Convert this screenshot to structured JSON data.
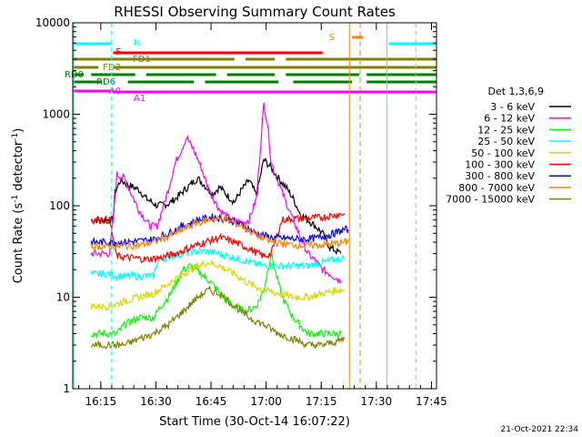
{
  "chart_data": {
    "type": "line",
    "title": "RHESSI Observing Summary Count Rates",
    "xlabel": "Start Time (30-Oct-14 16:07:22)",
    "ylabel": "Count Rate (s⁻¹ detector⁻¹)",
    "ylabel_parts": {
      "base": "Count Rate (s",
      "exp1": "-1",
      "mid": " detector",
      "exp2": "-1",
      "end": ")"
    },
    "yscale": "log",
    "x_unit": "minutes after 16:07:22",
    "xlim": [
      0,
      99
    ],
    "ylim": [
      1,
      10000
    ],
    "xticks": [
      {
        "v": 7.63,
        "label": "16:15"
      },
      {
        "v": 22.63,
        "label": "16:30"
      },
      {
        "v": 37.63,
        "label": "16:45"
      },
      {
        "v": 52.63,
        "label": "17:00"
      },
      {
        "v": 67.63,
        "label": "17:15"
      },
      {
        "v": 82.63,
        "label": "17:30"
      },
      {
        "v": 97.63,
        "label": "17:45"
      }
    ],
    "yticks": [
      {
        "v": 1,
        "label": "1"
      },
      {
        "v": 10,
        "label": "10"
      },
      {
        "v": 100,
        "label": "100"
      },
      {
        "v": 1000,
        "label": "1000"
      },
      {
        "v": 10000,
        "label": "10000"
      }
    ],
    "legend": {
      "title": "Det 1,3,6,9",
      "position": "right",
      "entries": [
        {
          "label": "3 - 6 keV",
          "color": "#000000"
        },
        {
          "label": "6 - 12 keV",
          "color": "#ff00ff"
        },
        {
          "label": "12 - 25 keV",
          "color": "#00ff00"
        },
        {
          "label": "25 - 50 keV",
          "color": "#00ffff"
        },
        {
          "label": "50 - 100 keV",
          "color": "#d8d800"
        },
        {
          "label": "100 - 300 keV",
          "color": "#ff0000"
        },
        {
          "label": "300 - 800 keV",
          "color": "#0000ff"
        },
        {
          "label": "800 - 7000 keV",
          "color": "#ff8000"
        },
        {
          "label": "7000 - 15000 keV",
          "color": "#808000"
        }
      ]
    },
    "series": [
      {
        "name": "3 - 6 keV",
        "color": "#000000",
        "points": [
          [
            5,
            70
          ],
          [
            11,
            70
          ],
          [
            11.5,
            140
          ],
          [
            13,
            190
          ],
          [
            15,
            170
          ],
          [
            18,
            150
          ],
          [
            20,
            120
          ],
          [
            23,
            100
          ],
          [
            26,
            105
          ],
          [
            28,
            120
          ],
          [
            32,
            170
          ],
          [
            34,
            200
          ],
          [
            36,
            165
          ],
          [
            38,
            135
          ],
          [
            40,
            160
          ],
          [
            42,
            130
          ],
          [
            44,
            110
          ],
          [
            46,
            150
          ],
          [
            48,
            190
          ],
          [
            50,
            130
          ],
          [
            52,
            320
          ],
          [
            54,
            260
          ],
          [
            56,
            200
          ],
          [
            58,
            160
          ],
          [
            60,
            120
          ],
          [
            62,
            80
          ],
          [
            64,
            70
          ],
          [
            66,
            60
          ],
          [
            68,
            50
          ],
          [
            70,
            35
          ],
          [
            73,
            30
          ]
        ]
      },
      {
        "name": "6 - 12 keV",
        "color": "#ff00ff",
        "points": [
          [
            5,
            30
          ],
          [
            10,
            30
          ],
          [
            11,
            70
          ],
          [
            12,
            220
          ],
          [
            14,
            200
          ],
          [
            18,
            90
          ],
          [
            21,
            60
          ],
          [
            23,
            60
          ],
          [
            26,
            150
          ],
          [
            28,
            300
          ],
          [
            30,
            450
          ],
          [
            31,
            560
          ],
          [
            33,
            400
          ],
          [
            35,
            260
          ],
          [
            37,
            150
          ],
          [
            40,
            90
          ],
          [
            43,
            70
          ],
          [
            46,
            65
          ],
          [
            48,
            70
          ],
          [
            50,
            120
          ],
          [
            52,
            1300
          ],
          [
            53,
            800
          ],
          [
            54,
            300
          ],
          [
            56,
            180
          ],
          [
            58,
            110
          ],
          [
            60,
            70
          ],
          [
            62,
            45
          ],
          [
            64,
            30
          ],
          [
            66,
            25
          ],
          [
            68,
            20
          ],
          [
            70,
            18
          ],
          [
            73,
            15
          ]
        ]
      },
      {
        "name": "12 - 25 keV",
        "color": "#00ff00",
        "points": [
          [
            5,
            4
          ],
          [
            10,
            4
          ],
          [
            12,
            4
          ],
          [
            14,
            5
          ],
          [
            18,
            6
          ],
          [
            22,
            6
          ],
          [
            24,
            8
          ],
          [
            26,
            10
          ],
          [
            28,
            14
          ],
          [
            30,
            20
          ],
          [
            32,
            22
          ],
          [
            35,
            18
          ],
          [
            38,
            14
          ],
          [
            41,
            10
          ],
          [
            44,
            8
          ],
          [
            47,
            7
          ],
          [
            50,
            8
          ],
          [
            52,
            12
          ],
          [
            54,
            30
          ],
          [
            55,
            20
          ],
          [
            57,
            10
          ],
          [
            60,
            6
          ],
          [
            64,
            4
          ],
          [
            68,
            4
          ],
          [
            71,
            4
          ],
          [
            73,
            4
          ]
        ]
      },
      {
        "name": "25 - 50 keV",
        "color": "#00ffff",
        "points": [
          [
            5,
            18
          ],
          [
            10,
            18
          ],
          [
            12,
            17
          ],
          [
            16,
            17
          ],
          [
            20,
            17
          ],
          [
            22,
            17
          ],
          [
            23,
            24
          ],
          [
            24,
            26
          ],
          [
            28,
            29
          ],
          [
            32,
            31
          ],
          [
            35,
            32
          ],
          [
            38,
            31
          ],
          [
            41,
            29
          ],
          [
            44,
            27
          ],
          [
            47,
            25
          ],
          [
            50,
            23
          ],
          [
            52,
            22
          ],
          [
            54,
            22
          ],
          [
            56,
            22
          ],
          [
            58,
            22
          ],
          [
            60,
            22
          ],
          [
            64,
            22
          ],
          [
            68,
            24
          ],
          [
            72,
            26
          ],
          [
            74,
            27
          ]
        ]
      },
      {
        "name": "50 - 100 keV",
        "color": "#d8d800",
        "points": [
          [
            5,
            8
          ],
          [
            10,
            8
          ],
          [
            14,
            9
          ],
          [
            18,
            10
          ],
          [
            22,
            11
          ],
          [
            26,
            14
          ],
          [
            30,
            18
          ],
          [
            34,
            22
          ],
          [
            37,
            24
          ],
          [
            40,
            22
          ],
          [
            44,
            18
          ],
          [
            48,
            14
          ],
          [
            52,
            12
          ],
          [
            56,
            11
          ],
          [
            60,
            10
          ],
          [
            64,
            10
          ],
          [
            68,
            11
          ],
          [
            72,
            12
          ],
          [
            74,
            12
          ]
        ]
      },
      {
        "name": "100 - 300 keV",
        "color": "#ff0000",
        "points": [
          [
            5,
            70
          ],
          [
            10,
            70
          ],
          [
            12,
            28
          ],
          [
            16,
            27
          ],
          [
            20,
            26
          ],
          [
            24,
            27
          ],
          [
            28,
            30
          ],
          [
            32,
            35
          ],
          [
            36,
            40
          ],
          [
            40,
            45
          ],
          [
            44,
            40
          ],
          [
            48,
            34
          ],
          [
            52,
            28
          ],
          [
            54,
            30
          ],
          [
            57,
            70
          ],
          [
            60,
            72
          ],
          [
            64,
            73
          ],
          [
            68,
            75
          ],
          [
            72,
            80
          ],
          [
            74,
            82
          ]
        ]
      },
      {
        "name": "300 - 800 keV",
        "color": "#0000ff",
        "points": [
          [
            5,
            40
          ],
          [
            10,
            40
          ],
          [
            14,
            40
          ],
          [
            18,
            41
          ],
          [
            22,
            43
          ],
          [
            26,
            50
          ],
          [
            30,
            60
          ],
          [
            34,
            70
          ],
          [
            38,
            75
          ],
          [
            42,
            72
          ],
          [
            46,
            62
          ],
          [
            50,
            50
          ],
          [
            54,
            45
          ],
          [
            58,
            44
          ],
          [
            62,
            43
          ],
          [
            66,
            44
          ],
          [
            70,
            48
          ],
          [
            74,
            55
          ],
          [
            75,
            55
          ]
        ]
      },
      {
        "name": "800 - 7000 keV",
        "color": "#ff8000",
        "points": [
          [
            5,
            36
          ],
          [
            10,
            36
          ],
          [
            14,
            36
          ],
          [
            18,
            37
          ],
          [
            22,
            40
          ],
          [
            26,
            46
          ],
          [
            30,
            55
          ],
          [
            34,
            65
          ],
          [
            38,
            72
          ],
          [
            42,
            70
          ],
          [
            46,
            60
          ],
          [
            50,
            48
          ],
          [
            54,
            40
          ],
          [
            58,
            38
          ],
          [
            62,
            37
          ],
          [
            66,
            37
          ],
          [
            70,
            38
          ],
          [
            74,
            40
          ],
          [
            75,
            40
          ]
        ]
      },
      {
        "name": "7000 - 15000 keV",
        "color": "#808000",
        "points": [
          [
            5,
            3
          ],
          [
            10,
            3
          ],
          [
            14,
            3
          ],
          [
            18,
            3.5
          ],
          [
            22,
            4
          ],
          [
            26,
            5
          ],
          [
            30,
            7
          ],
          [
            34,
            10
          ],
          [
            37,
            12
          ],
          [
            40,
            11
          ],
          [
            44,
            8
          ],
          [
            48,
            6
          ],
          [
            52,
            5
          ],
          [
            56,
            4
          ],
          [
            60,
            3.5
          ],
          [
            64,
            3
          ],
          [
            68,
            3
          ],
          [
            72,
            3.3
          ],
          [
            74,
            3.5
          ]
        ]
      }
    ],
    "flags": [
      {
        "label": "N",
        "color": "#00ffff",
        "segments": [
          [
            0,
            10.5
          ],
          [
            86,
            99
          ]
        ]
      },
      {
        "label": "F",
        "color": "#ff0000",
        "segments": [
          [
            11,
            68
          ]
        ]
      },
      {
        "label": "FD1",
        "color": "#808000",
        "segments": [
          [
            0,
            44
          ],
          [
            47,
            55
          ],
          [
            58,
            99
          ]
        ]
      },
      {
        "label": "FD2",
        "color": "#808000",
        "segments": [
          [
            0,
            7
          ],
          [
            11,
            99
          ]
        ]
      },
      {
        "label": "RD0",
        "color": "#008000",
        "segments": [
          [
            0,
            3
          ],
          [
            5,
            17
          ],
          [
            20,
            39
          ],
          [
            42,
            55
          ],
          [
            58,
            78
          ],
          [
            80,
            99
          ]
        ]
      },
      {
        "label": "RD6",
        "color": "#008000",
        "segments": [
          [
            0,
            8
          ],
          [
            15,
            33
          ],
          [
            36,
            56
          ],
          [
            60,
            76
          ],
          [
            80,
            99
          ]
        ]
      },
      {
        "label": "A0",
        "color": "#ff00ff",
        "segments": [
          [
            0,
            11
          ]
        ]
      },
      {
        "label": "A1",
        "color": "#ff00ff",
        "segments": [
          [
            11,
            99
          ]
        ]
      },
      {
        "label": "S",
        "color": "#ff8000",
        "segments": [
          [
            76,
            79
          ]
        ]
      }
    ],
    "grid": false
  },
  "footer": {
    "timestamp": "21-Oct-2021 22:34"
  }
}
